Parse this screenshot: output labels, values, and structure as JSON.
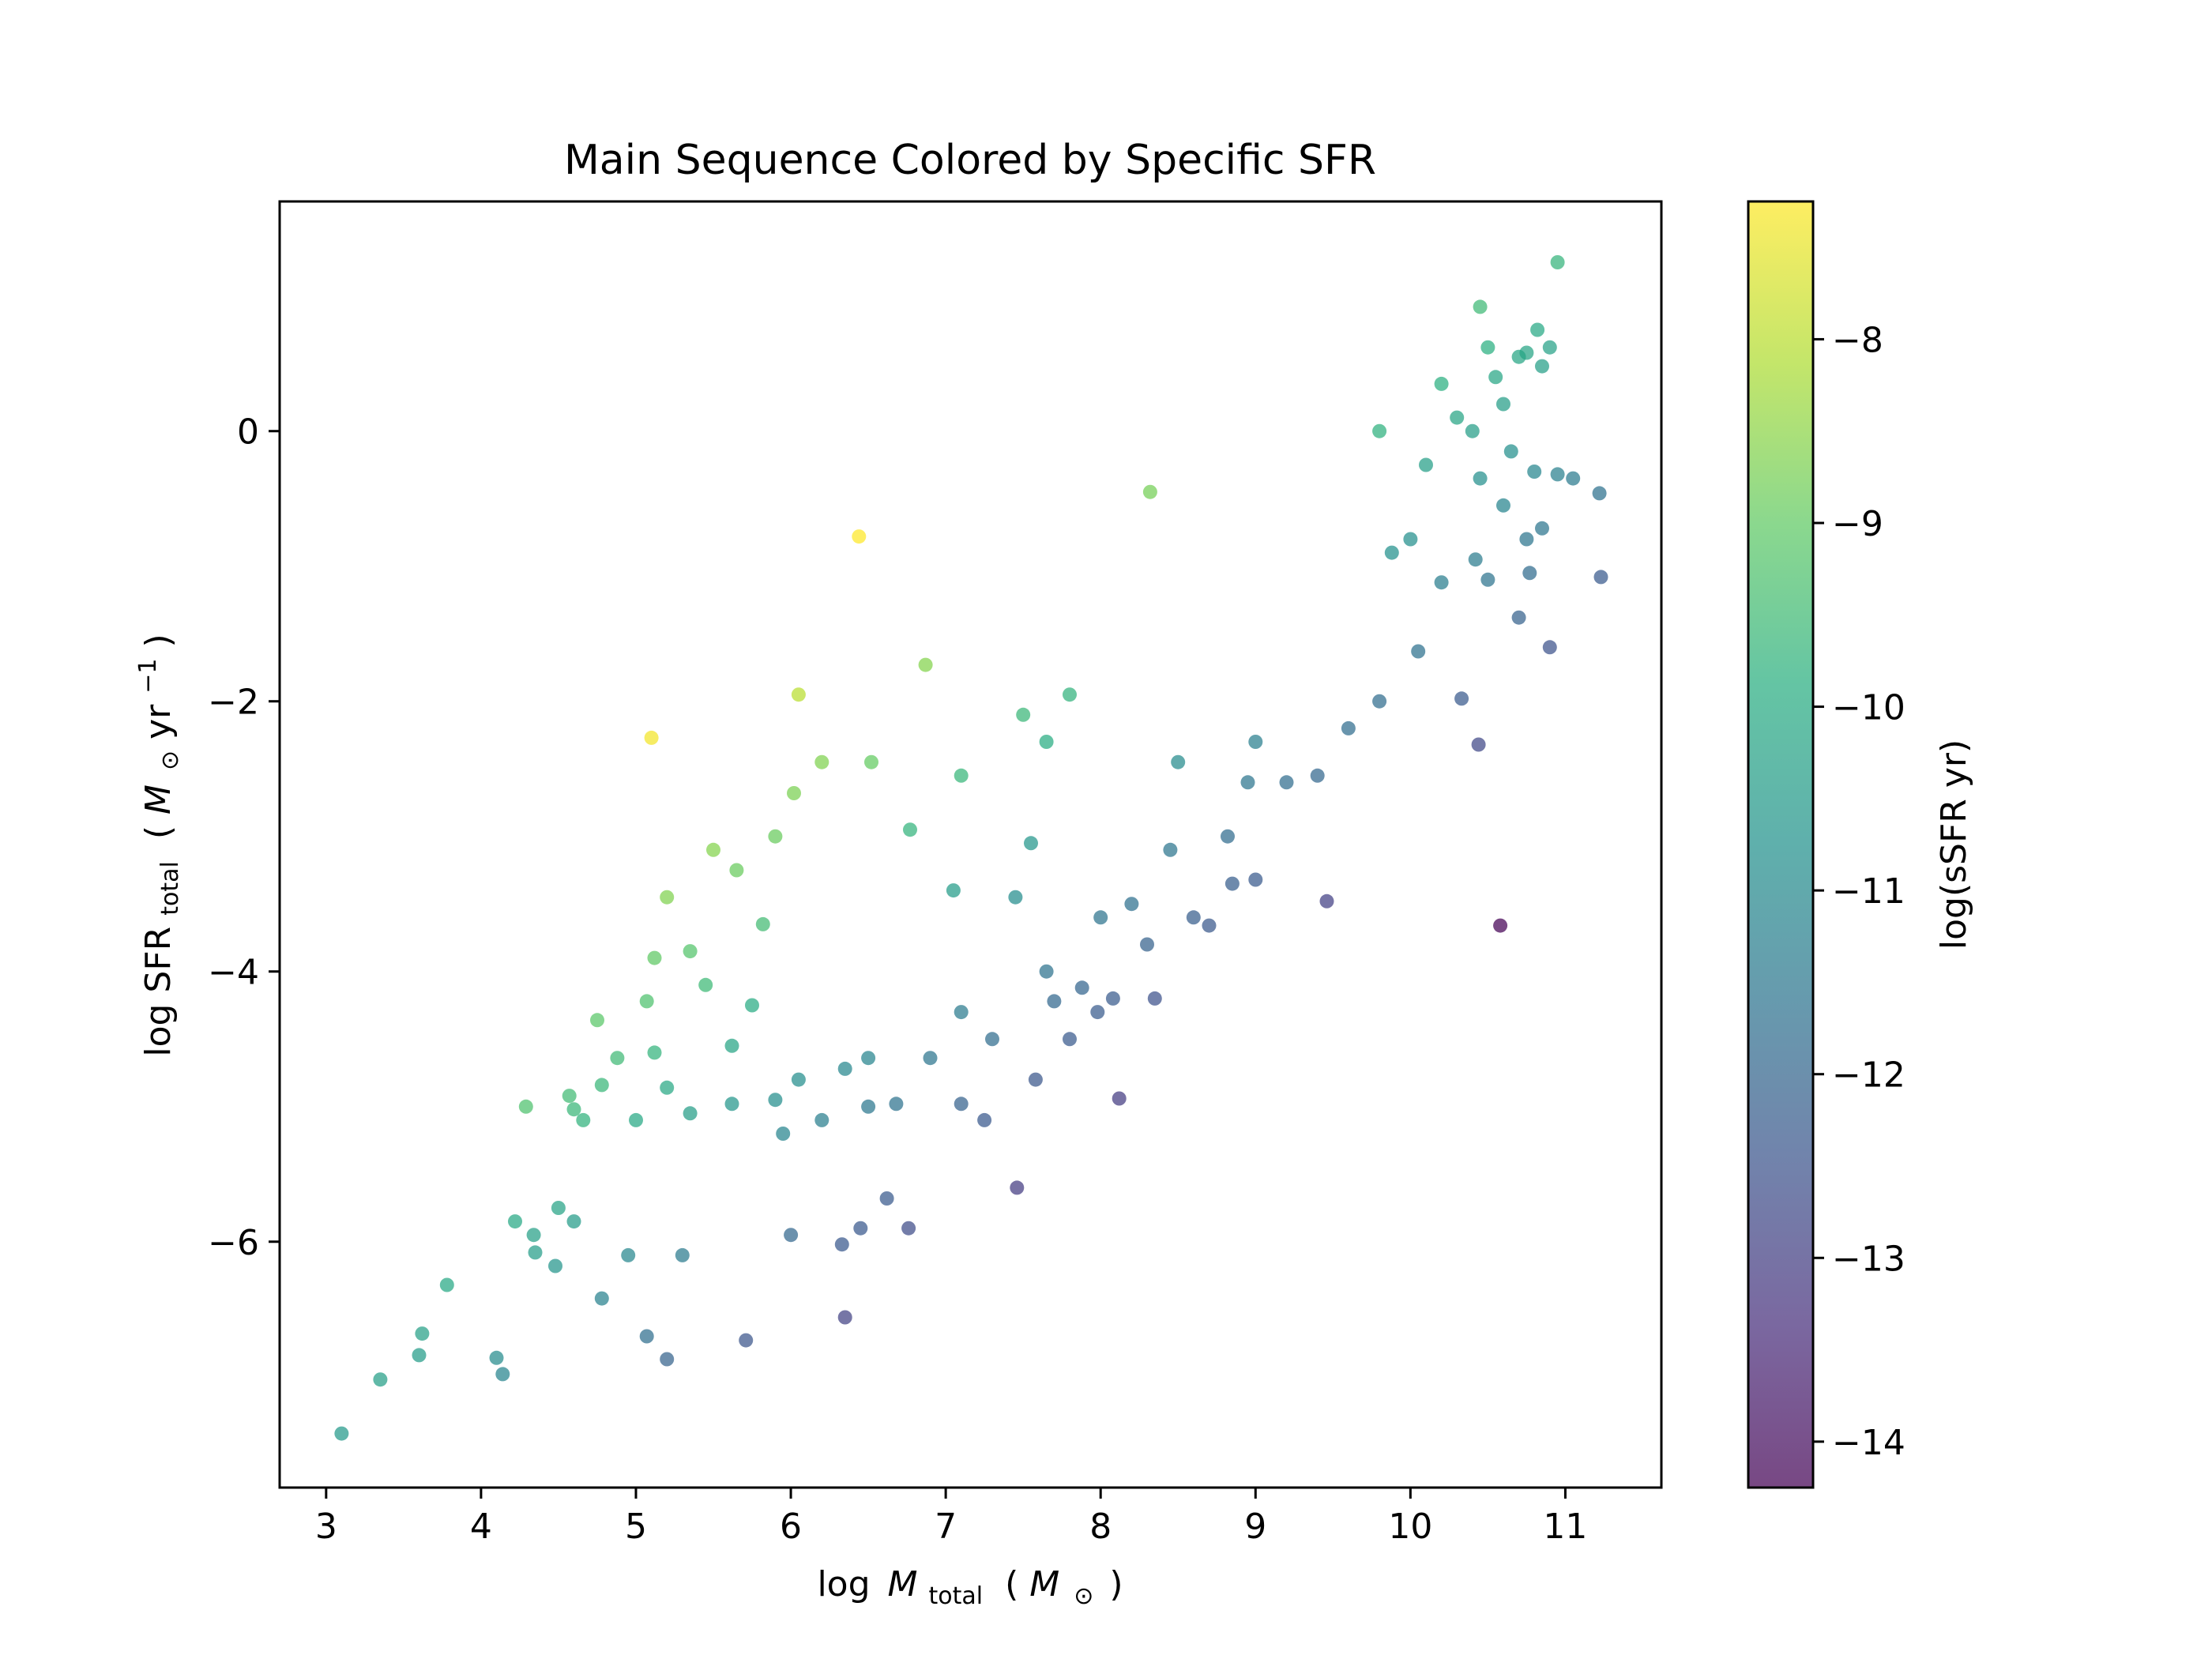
{
  "chart_data": {
    "type": "scatter",
    "title": "Main Sequence Colored by Specific SFR",
    "xlabel": {
      "prefix": "log",
      "var": "M",
      "sub": "total",
      "unit_open": "(",
      "unit_var": "M",
      "unit_sub": "⊙",
      "unit_close": ")"
    },
    "ylabel": {
      "prefix": "log SFR",
      "sub": "total",
      "unit_open": "(",
      "unit_var": "M",
      "unit_sub": "⊙",
      "unit_mid": " yr",
      "unit_sup": "−1",
      "unit_close": ")"
    },
    "colorbar_label": "log(sSFR yr)",
    "xlim": [
      2.7,
      11.62
    ],
    "ylim": [
      -7.82,
      1.7
    ],
    "clim": [
      -14.25,
      -7.25
    ],
    "colormap": "viridis",
    "alpha": 0.72,
    "grid": false,
    "xticks": [
      3,
      4,
      5,
      6,
      7,
      8,
      9,
      10,
      11
    ],
    "xtick_labels": [
      "3",
      "4",
      "5",
      "6",
      "7",
      "8",
      "9",
      "10",
      "11"
    ],
    "yticks": [
      -6,
      -4,
      -2,
      0
    ],
    "ytick_labels": [
      "−6",
      "−4",
      "−2",
      "0"
    ],
    "cticks": [
      -14,
      -13,
      -12,
      -11,
      -10,
      -9,
      -8
    ],
    "ctick_labels": [
      "−14",
      "−13",
      "−12",
      "−11",
      "−10",
      "−9",
      "−8"
    ],
    "points": [
      [
        10.95,
        1.25
      ],
      [
        10.45,
        0.92
      ],
      [
        10.82,
        0.75
      ],
      [
        10.7,
        0.55
      ],
      [
        10.9,
        0.62
      ],
      [
        10.5,
        0.62
      ],
      [
        10.2,
        0.35
      ],
      [
        10.55,
        0.4
      ],
      [
        10.85,
        0.48
      ],
      [
        10.75,
        0.58
      ],
      [
        10.3,
        0.1
      ],
      [
        10.6,
        0.2
      ],
      [
        10.4,
        0.0
      ],
      [
        9.8,
        0.0
      ],
      [
        10.1,
        -0.25
      ],
      [
        10.45,
        -0.35
      ],
      [
        10.65,
        -0.15
      ],
      [
        10.8,
        -0.3
      ],
      [
        10.95,
        -0.32
      ],
      [
        11.05,
        -0.35
      ],
      [
        11.22,
        -0.46
      ],
      [
        11.23,
        -1.08
      ],
      [
        10.9,
        -1.6
      ],
      [
        10.7,
        -1.38
      ],
      [
        10.77,
        -1.05
      ],
      [
        10.5,
        -1.1
      ],
      [
        10.42,
        -0.95
      ],
      [
        10.6,
        -0.55
      ],
      [
        10.85,
        -0.72
      ],
      [
        10.75,
        -0.8
      ],
      [
        10.2,
        -1.12
      ],
      [
        10.0,
        -0.8
      ],
      [
        9.88,
        -0.9
      ],
      [
        10.05,
        -1.63
      ],
      [
        10.33,
        -1.98
      ],
      [
        10.44,
        -2.32
      ],
      [
        10.58,
        -3.66
      ],
      [
        9.46,
        -3.48
      ],
      [
        8.32,
        -0.45
      ],
      [
        6.44,
        -0.78
      ],
      [
        5.1,
        -2.27
      ],
      [
        6.87,
        -1.73
      ],
      [
        8.12,
        -4.94
      ],
      [
        7.46,
        -5.6
      ],
      [
        6.35,
        -6.56
      ],
      [
        5.71,
        -6.73
      ],
      [
        5.2,
        -6.87
      ],
      [
        5.07,
        -6.7
      ],
      [
        4.14,
        -6.98
      ],
      [
        4.1,
        -6.86
      ],
      [
        3.35,
        -7.02
      ],
      [
        3.1,
        -7.42
      ],
      [
        3.62,
        -6.68
      ],
      [
        3.6,
        -6.84
      ],
      [
        3.78,
        -6.32
      ],
      [
        4.78,
        -6.42
      ],
      [
        4.35,
        -6.08
      ],
      [
        4.48,
        -6.18
      ],
      [
        4.22,
        -5.85
      ],
      [
        4.34,
        -5.95
      ],
      [
        4.5,
        -5.75
      ],
      [
        4.6,
        -5.85
      ],
      [
        4.95,
        -6.1
      ],
      [
        5.3,
        -6.1
      ],
      [
        6.0,
        -5.95
      ],
      [
        6.33,
        -6.02
      ],
      [
        6.45,
        -5.9
      ],
      [
        6.62,
        -5.68
      ],
      [
        6.76,
        -5.9
      ],
      [
        4.29,
        -5.0
      ],
      [
        4.57,
        -4.92
      ],
      [
        4.6,
        -5.02
      ],
      [
        4.66,
        -5.1
      ],
      [
        4.78,
        -4.84
      ],
      [
        4.88,
        -4.64
      ],
      [
        4.75,
        -4.36
      ],
      [
        5.07,
        -4.22
      ],
      [
        5.12,
        -4.6
      ],
      [
        5.2,
        -4.86
      ],
      [
        5.35,
        -5.05
      ],
      [
        5.62,
        -4.98
      ],
      [
        5.95,
        -5.2
      ],
      [
        6.2,
        -5.1
      ],
      [
        6.35,
        -4.72
      ],
      [
        6.5,
        -5.0
      ],
      [
        6.68,
        -4.98
      ],
      [
        6.9,
        -4.64
      ],
      [
        7.1,
        -4.98
      ],
      [
        7.25,
        -5.1
      ],
      [
        7.58,
        -4.8
      ],
      [
        7.8,
        -4.5
      ],
      [
        7.98,
        -4.3
      ],
      [
        8.35,
        -4.2
      ],
      [
        8.7,
        -3.66
      ],
      [
        8.85,
        -3.35
      ],
      [
        9.0,
        -3.32
      ],
      [
        8.45,
        -3.1
      ],
      [
        8.82,
        -3.0
      ],
      [
        8.0,
        -3.6
      ],
      [
        8.2,
        -3.5
      ],
      [
        8.6,
        -3.6
      ],
      [
        8.95,
        -2.6
      ],
      [
        9.2,
        -2.6
      ],
      [
        9.4,
        -2.55
      ],
      [
        9.6,
        -2.2
      ],
      [
        9.8,
        -2.0
      ],
      [
        9.0,
        -2.3
      ],
      [
        8.5,
        -2.45
      ],
      [
        5.2,
        -3.45
      ],
      [
        5.35,
        -3.85
      ],
      [
        5.12,
        -3.9
      ],
      [
        5.5,
        -3.1
      ],
      [
        5.65,
        -3.25
      ],
      [
        5.9,
        -3.0
      ],
      [
        5.75,
        -4.25
      ],
      [
        5.0,
        -5.1
      ],
      [
        5.45,
        -4.1
      ],
      [
        6.05,
        -4.8
      ],
      [
        5.9,
        -4.95
      ],
      [
        6.5,
        -4.64
      ],
      [
        7.1,
        -4.3
      ],
      [
        7.3,
        -4.5
      ],
      [
        7.65,
        -4.0
      ],
      [
        7.7,
        -4.22
      ],
      [
        7.88,
        -4.12
      ],
      [
        8.08,
        -4.2
      ],
      [
        8.3,
        -3.8
      ],
      [
        6.02,
        -2.68
      ],
      [
        6.2,
        -2.45
      ],
      [
        6.52,
        -2.45
      ],
      [
        5.82,
        -3.65
      ],
      [
        5.62,
        -4.55
      ],
      [
        6.05,
        -1.95
      ],
      [
        6.77,
        -2.95
      ],
      [
        7.05,
        -3.4
      ],
      [
        7.1,
        -2.55
      ],
      [
        7.5,
        -2.1
      ],
      [
        7.8,
        -1.95
      ],
      [
        7.65,
        -2.3
      ],
      [
        7.55,
        -3.05
      ],
      [
        7.45,
        -3.45
      ]
    ]
  }
}
